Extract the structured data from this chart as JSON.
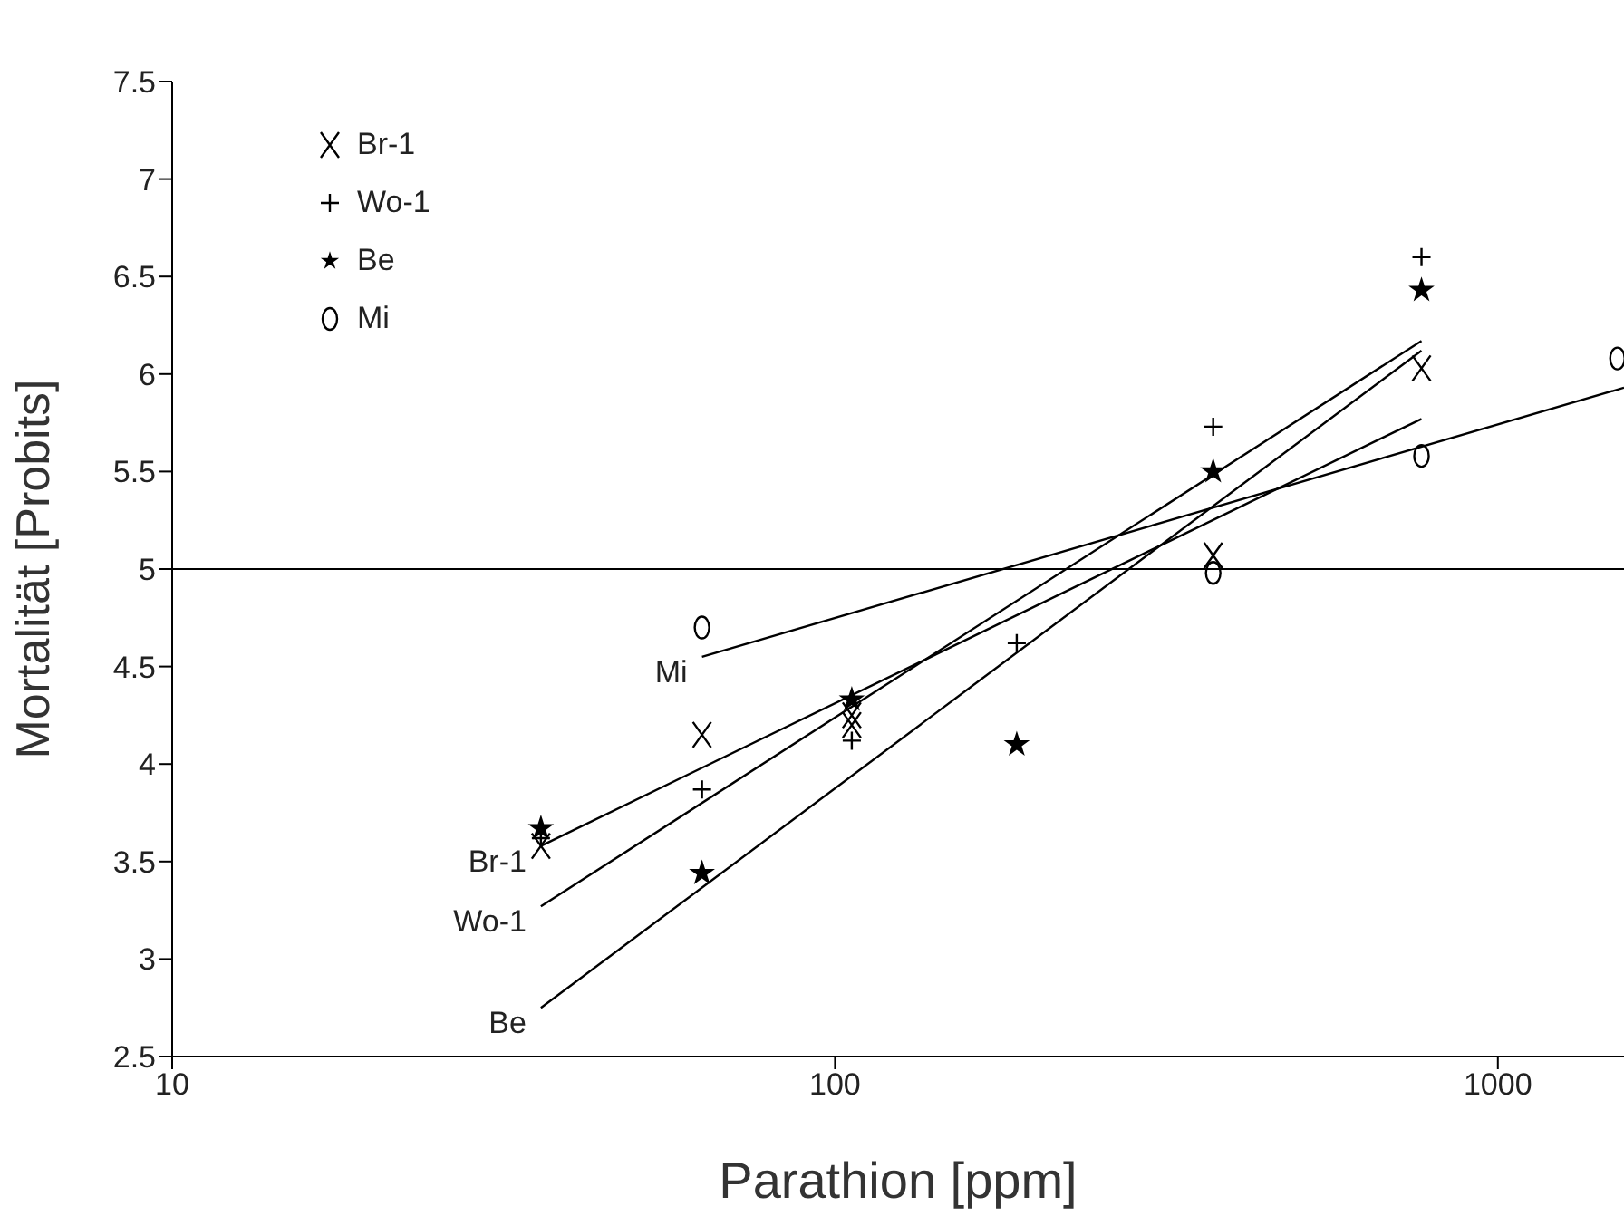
{
  "chart_data": {
    "type": "scatter",
    "xlabel": "Parathion [ppm]",
    "ylabel": "Mortalität [Probits]",
    "log": "x",
    "xlim": [
      10,
      1550
    ],
    "xticks": [
      10,
      100,
      1000
    ],
    "ylim": [
      2.5,
      7.5
    ],
    "yticks": [
      2.5,
      3,
      3.5,
      4,
      4.5,
      5,
      5.5,
      6,
      6.5,
      7,
      7.5
    ],
    "grid": false,
    "legend": "top left",
    "ref_lines": [
      {
        "axis": "y",
        "value": 5,
        "color": "#000000"
      }
    ],
    "series": [
      {
        "name": "Br-1",
        "color": "#000000",
        "marker": "cross",
        "x": [
          36,
          63,
          106,
          106,
          372,
          767
        ],
        "values": [
          3.58,
          4.15,
          4.2,
          4.25,
          5.07,
          6.03
        ]
      },
      {
        "name": "Wo-1",
        "color": "#000000",
        "marker": "plus",
        "x": [
          36,
          63,
          106,
          188,
          372,
          767
        ],
        "values": [
          3.62,
          3.87,
          4.12,
          4.62,
          5.73,
          6.6
        ]
      },
      {
        "name": "Be",
        "color": "#000000",
        "marker": "star",
        "x": [
          36,
          63,
          106,
          188,
          372,
          767
        ],
        "values": [
          3.67,
          3.44,
          4.33,
          4.1,
          5.5,
          6.43
        ]
      },
      {
        "name": "Mi",
        "color": "#000000",
        "marker": "circle",
        "x": [
          63,
          372,
          767,
          1515
        ],
        "values": [
          4.7,
          4.98,
          5.58,
          6.08
        ]
      },
      {
        "name": "Br-1",
        "type": "line",
        "color": "#000000",
        "marker": "none",
        "x": [
          36,
          767
        ],
        "values": [
          3.58,
          5.77
        ]
      },
      {
        "name": "Wo-1",
        "type": "line",
        "color": "#000000",
        "marker": "none",
        "x": [
          36,
          767
        ],
        "values": [
          3.27,
          6.17
        ]
      },
      {
        "name": "Be",
        "type": "line",
        "color": "#000000",
        "marker": "none",
        "x": [
          36,
          767
        ],
        "values": [
          2.75,
          6.12
        ]
      },
      {
        "name": "Mi",
        "type": "line",
        "color": "#000000",
        "marker": "none",
        "x": [
          63,
          1550
        ],
        "values": [
          4.55,
          5.93
        ]
      }
    ]
  }
}
